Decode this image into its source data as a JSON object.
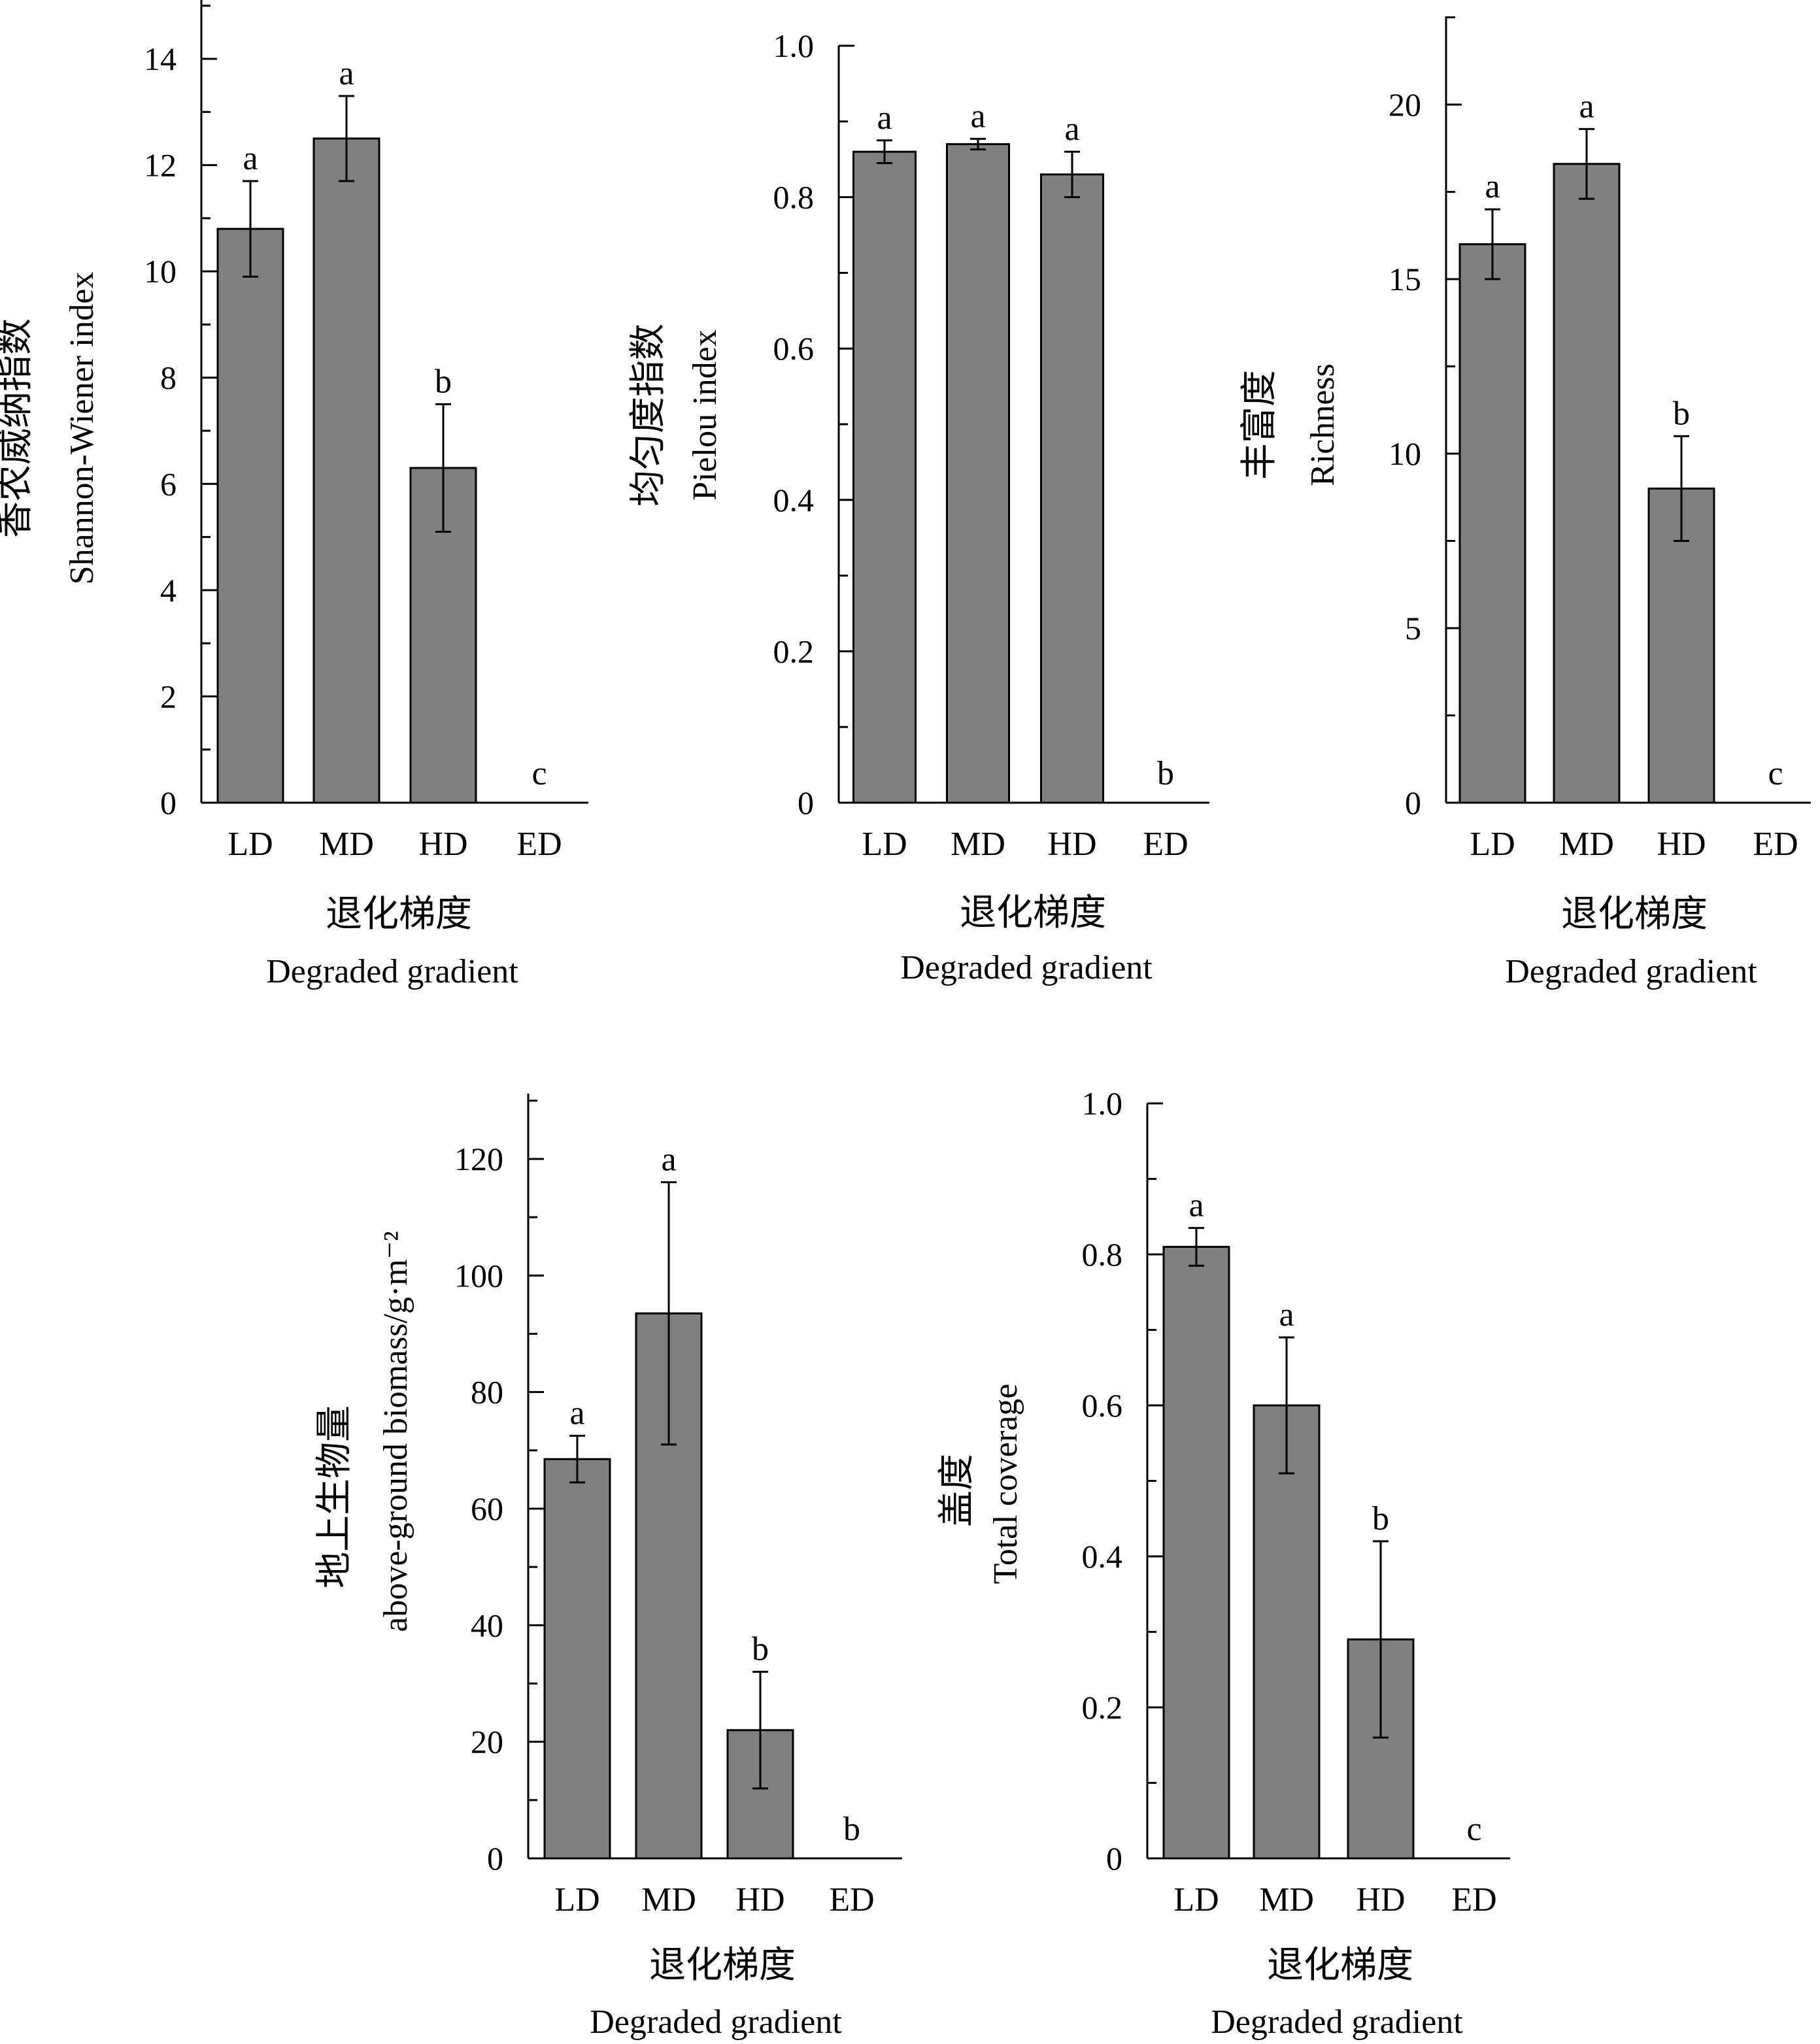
{
  "chart_data": [
    {
      "type": "bar",
      "categories": [
        "LD",
        "MD",
        "HD",
        "ED"
      ],
      "series": [
        {
          "values": [
            10.8,
            12.5,
            6.3,
            0
          ],
          "error": [
            0.9,
            0.8,
            1.2,
            0
          ]
        }
      ],
      "significance": [
        "a",
        "a",
        "b",
        "c"
      ],
      "ylabel_cn": "香农威纳指数",
      "ylabel_en": "Shannon-Wiener index",
      "xlabel_cn": "退化梯度",
      "xlabel_en": "Degraded gradient",
      "ylim": [
        0,
        14
      ],
      "yticks": [
        "0",
        "2",
        "4",
        "6",
        "8",
        "10",
        "12",
        "14"
      ],
      "ytick_values": [
        0,
        2,
        4,
        6,
        8,
        10,
        12,
        14
      ],
      "minor_step": 1,
      "ymax": 15
    },
    {
      "type": "bar",
      "categories": [
        "LD",
        "MD",
        "HD",
        "ED"
      ],
      "series": [
        {
          "values": [
            0.86,
            0.87,
            0.83,
            0
          ],
          "error": [
            0.015,
            0.007,
            0.03,
            0
          ]
        }
      ],
      "significance": [
        "a",
        "a",
        "a",
        "b"
      ],
      "ylabel_cn": "均匀度指数",
      "ylabel_en": "Pielou index",
      "xlabel_cn": "退化梯度",
      "xlabel_en": "Degraded gradient",
      "ylim": [
        0,
        1.0
      ],
      "yticks": [
        "0",
        "0.2",
        "0.4",
        "0.6",
        "0.8",
        "1.0"
      ],
      "ytick_values": [
        0,
        0.2,
        0.4,
        0.6,
        0.8,
        1.0
      ],
      "minor_step": 0.1,
      "ymax": 1.0
    },
    {
      "type": "bar",
      "categories": [
        "LD",
        "MD",
        "HD",
        "ED"
      ],
      "series": [
        {
          "values": [
            16.0,
            18.3,
            9.0,
            0
          ],
          "error": [
            1.0,
            1.0,
            1.5,
            0
          ]
        }
      ],
      "significance": [
        "a",
        "a",
        "b",
        "c"
      ],
      "ylabel_cn": "丰富度",
      "ylabel_en": "Richness",
      "xlabel_cn": "退化梯度",
      "xlabel_en": "Degraded gradient",
      "ylim": [
        0,
        20
      ],
      "yticks": [
        "0",
        "5",
        "10",
        "15",
        "20"
      ],
      "ytick_values": [
        0,
        5,
        10,
        15,
        20
      ],
      "minor_step": 2.5,
      "ymax": 22.5
    },
    {
      "type": "bar",
      "categories": [
        "LD",
        "MD",
        "HD",
        "ED"
      ],
      "series": [
        {
          "values": [
            68.5,
            93.5,
            22.0,
            0
          ],
          "error": [
            4.0,
            22.5,
            10.0,
            0
          ]
        }
      ],
      "significance": [
        "a",
        "a",
        "b",
        "b"
      ],
      "ylabel_cn": "地上生物量",
      "ylabel_en": "above-ground biomass/g·m⁻²",
      "xlabel_cn": "退化梯度",
      "xlabel_en": "Degraded gradient",
      "ylim": [
        0,
        120
      ],
      "yticks": [
        "0",
        "20",
        "40",
        "60",
        "80",
        "100",
        "120"
      ],
      "ytick_values": [
        0,
        20,
        40,
        60,
        80,
        100,
        120
      ],
      "minor_step": 10,
      "ymax": 130
    },
    {
      "type": "bar",
      "categories": [
        "LD",
        "MD",
        "HD",
        "ED"
      ],
      "series": [
        {
          "values": [
            0.81,
            0.6,
            0.29,
            0
          ],
          "error": [
            0.025,
            0.09,
            0.13,
            0
          ]
        }
      ],
      "significance": [
        "a",
        "a",
        "b",
        "c"
      ],
      "ylabel_cn": "盖度",
      "ylabel_en": "Total coverage",
      "xlabel_cn": "退化梯度",
      "xlabel_en": "Degraded gradient",
      "ylim": [
        0,
        1.0
      ],
      "yticks": [
        "0",
        "0.2",
        "0.4",
        "0.6",
        "0.8",
        "1.0"
      ],
      "ytick_values": [
        0,
        0.2,
        0.4,
        0.6,
        0.8,
        1.0
      ],
      "minor_step": 0.1,
      "ymax": 1.0
    }
  ],
  "colors": {
    "bar_fill": "#808080",
    "stroke": "#000000"
  }
}
